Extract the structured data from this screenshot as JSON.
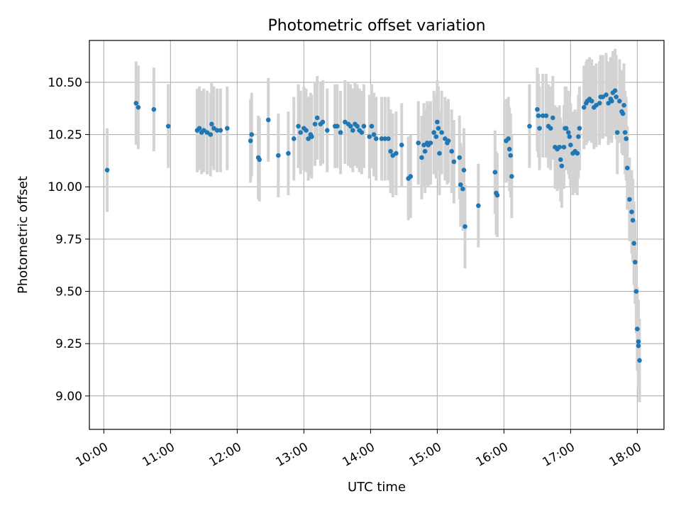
{
  "chart_data": {
    "type": "scatter",
    "title": "Photometric offset variation",
    "xlabel": "UTC time",
    "ylabel": "Photometric offset",
    "xlim": [
      "09:47",
      "18:24"
    ],
    "ylim": [
      8.84,
      10.7
    ],
    "x_ticks": [
      "10:00",
      "11:00",
      "12:00",
      "13:00",
      "14:00",
      "15:00",
      "16:00",
      "17:00",
      "18:00"
    ],
    "y_ticks": [
      "9.00",
      "9.25",
      "9.50",
      "9.75",
      "10.00",
      "10.25",
      "10.50"
    ],
    "y_tick_values": [
      9.0,
      9.25,
      9.5,
      9.75,
      10.0,
      10.25,
      10.5
    ],
    "grid": true,
    "colors": {
      "points": "#1f77b4",
      "error_bars": "#d3d3d3",
      "grid": "#b0b0b0"
    },
    "series": [
      {
        "error_bar_halfwidth": 0.2,
        "points": [
          [
            "10:03",
            10.08
          ],
          [
            "10:29",
            10.4
          ],
          [
            "10:31",
            10.38
          ],
          [
            "10:45",
            10.37
          ],
          [
            "10:58",
            10.29
          ],
          [
            "11:24",
            10.27
          ],
          [
            "11:26",
            10.28
          ],
          [
            "11:28",
            10.26
          ],
          [
            "11:30",
            10.27
          ],
          [
            "11:33",
            10.26
          ],
          [
            "11:36",
            10.25
          ],
          [
            "11:37",
            10.3
          ],
          [
            "11:39",
            10.28
          ],
          [
            "11:42",
            10.27
          ],
          [
            "11:45",
            10.27
          ],
          [
            "11:51",
            10.28
          ],
          [
            "12:12",
            10.22
          ],
          [
            "12:13",
            10.25
          ],
          [
            "12:19",
            10.14
          ],
          [
            "12:20",
            10.13
          ],
          [
            "12:28",
            10.32
          ],
          [
            "12:37",
            10.15
          ],
          [
            "12:46",
            10.16
          ],
          [
            "12:51",
            10.23
          ],
          [
            "12:55",
            10.29
          ],
          [
            "12:57",
            10.26
          ],
          [
            "13:00",
            10.28
          ],
          [
            "13:02",
            10.27
          ],
          [
            "13:04",
            10.23
          ],
          [
            "13:06",
            10.25
          ],
          [
            "13:07",
            10.24
          ],
          [
            "13:10",
            10.3
          ],
          [
            "13:12",
            10.33
          ],
          [
            "13:15",
            10.3
          ],
          [
            "13:17",
            10.31
          ],
          [
            "13:21",
            10.27
          ],
          [
            "13:28",
            10.29
          ],
          [
            "13:30",
            10.29
          ],
          [
            "13:33",
            10.26
          ],
          [
            "13:37",
            10.31
          ],
          [
            "13:40",
            10.3
          ],
          [
            "13:42",
            10.29
          ],
          [
            "13:44",
            10.27
          ],
          [
            "13:46",
            10.3
          ],
          [
            "13:48",
            10.29
          ],
          [
            "13:50",
            10.27
          ],
          [
            "13:52",
            10.26
          ],
          [
            "13:54",
            10.29
          ],
          [
            "13:59",
            10.24
          ],
          [
            "14:01",
            10.29
          ],
          [
            "14:03",
            10.25
          ],
          [
            "14:05",
            10.23
          ],
          [
            "14:10",
            10.23
          ],
          [
            "14:13",
            10.23
          ],
          [
            "14:16",
            10.23
          ],
          [
            "14:18",
            10.17
          ],
          [
            "14:20",
            10.15
          ],
          [
            "14:23",
            10.16
          ],
          [
            "14:28",
            10.2
          ],
          [
            "14:34",
            10.04
          ],
          [
            "14:36",
            10.05
          ],
          [
            "14:43",
            10.21
          ],
          [
            "14:46",
            10.14
          ],
          [
            "14:48",
            10.2
          ],
          [
            "14:49",
            10.17
          ],
          [
            "14:51",
            10.21
          ],
          [
            "14:52",
            10.2
          ],
          [
            "14:54",
            10.21
          ],
          [
            "14:57",
            10.26
          ],
          [
            "14:59",
            10.24
          ],
          [
            "15:00",
            10.31
          ],
          [
            "15:01",
            10.28
          ],
          [
            "15:02",
            10.16
          ],
          [
            "15:04",
            10.26
          ],
          [
            "15:07",
            10.23
          ],
          [
            "15:09",
            10.21
          ],
          [
            "15:10",
            10.22
          ],
          [
            "15:13",
            10.17
          ],
          [
            "15:15",
            10.12
          ],
          [
            "15:20",
            10.14
          ],
          [
            "15:21",
            10.01
          ],
          [
            "15:23",
            9.99
          ],
          [
            "15:24",
            10.08
          ],
          [
            "15:25",
            9.81
          ],
          [
            "15:37",
            9.91
          ],
          [
            "15:52",
            10.07
          ],
          [
            "15:53",
            9.97
          ],
          [
            "15:54",
            9.96
          ],
          [
            "16:02",
            10.22
          ],
          [
            "16:04",
            10.23
          ],
          [
            "16:05",
            10.18
          ],
          [
            "16:06",
            10.15
          ],
          [
            "16:07",
            10.05
          ],
          [
            "16:23",
            10.29
          ],
          [
            "16:30",
            10.37
          ],
          [
            "16:31",
            10.34
          ],
          [
            "16:32",
            10.28
          ],
          [
            "16:35",
            10.34
          ],
          [
            "16:38",
            10.34
          ],
          [
            "16:40",
            10.29
          ],
          [
            "16:42",
            10.28
          ],
          [
            "16:44",
            10.33
          ],
          [
            "16:46",
            10.19
          ],
          [
            "16:48",
            10.18
          ],
          [
            "16:50",
            10.19
          ],
          [
            "16:51",
            10.13
          ],
          [
            "16:52",
            10.1
          ],
          [
            "16:54",
            10.19
          ],
          [
            "16:55",
            10.28
          ],
          [
            "16:56",
            10.28
          ],
          [
            "16:58",
            10.26
          ],
          [
            "16:59",
            10.24
          ],
          [
            "17:00",
            10.2
          ],
          [
            "17:02",
            10.16
          ],
          [
            "17:04",
            10.17
          ],
          [
            "17:06",
            10.16
          ],
          [
            "17:07",
            10.24
          ],
          [
            "17:08",
            10.28
          ],
          [
            "17:12",
            10.38
          ],
          [
            "17:14",
            10.4
          ],
          [
            "17:15",
            10.41
          ],
          [
            "17:17",
            10.42
          ],
          [
            "17:19",
            10.41
          ],
          [
            "17:21",
            10.38
          ],
          [
            "17:23",
            10.39
          ],
          [
            "17:26",
            10.4
          ],
          [
            "17:27",
            10.43
          ],
          [
            "17:29",
            10.43
          ],
          [
            "17:32",
            10.44
          ],
          [
            "17:34",
            10.4
          ],
          [
            "17:36",
            10.42
          ],
          [
            "17:37",
            10.41
          ],
          [
            "17:38",
            10.45
          ],
          [
            "17:40",
            10.46
          ],
          [
            "17:41",
            10.43
          ],
          [
            "17:42",
            10.26
          ],
          [
            "17:44",
            10.41
          ],
          [
            "17:46",
            10.36
          ],
          [
            "17:47",
            10.35
          ],
          [
            "17:48",
            10.39
          ],
          [
            "17:49",
            10.26
          ],
          [
            "17:50",
            10.23
          ],
          [
            "17:51",
            10.09
          ],
          [
            "17:53",
            9.94
          ],
          [
            "17:55",
            9.88
          ],
          [
            "17:56",
            9.84
          ],
          [
            "17:57",
            9.73
          ],
          [
            "17:58",
            9.64
          ],
          [
            "17:59",
            9.5
          ],
          [
            "18:00",
            9.32
          ],
          [
            "18:01",
            9.26
          ],
          [
            "18:01",
            9.24
          ],
          [
            "18:02",
            9.17
          ]
        ]
      }
    ]
  }
}
